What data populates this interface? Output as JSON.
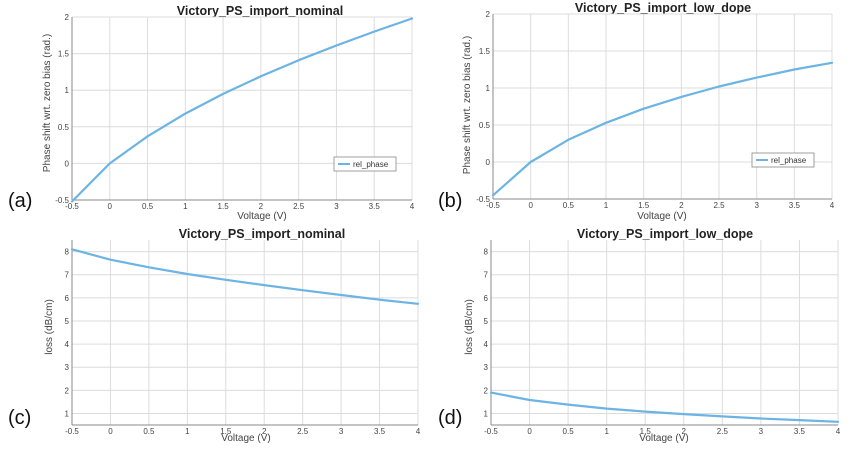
{
  "chart_data": [
    {
      "id": "a",
      "type": "line",
      "panel_label": "(a)",
      "title": "Victory_PS_import_nominal",
      "xlabel": "Voltage (V)",
      "ylabel": "Phase shift wrt. zero bias (rad.)",
      "xlim": [
        -0.5,
        4
      ],
      "ylim": [
        -0.5,
        2
      ],
      "xticks": [
        "-0.5",
        "0",
        "0.5",
        "1",
        "1.5",
        "2",
        "2.5",
        "3",
        "3.5",
        "4"
      ],
      "yticks": [
        "-0.5",
        "0",
        "0.5",
        "1",
        "1.5",
        "2"
      ],
      "grid": true,
      "legend": "right",
      "series": [
        {
          "name": "rel_phase",
          "color": "#6cb4e4",
          "x": [
            -0.5,
            0,
            0.5,
            1,
            1.5,
            2,
            2.5,
            3,
            3.5,
            4
          ],
          "y": [
            -0.52,
            0.0,
            0.37,
            0.68,
            0.95,
            1.19,
            1.41,
            1.61,
            1.8,
            1.98
          ]
        }
      ]
    },
    {
      "id": "b",
      "type": "line",
      "panel_label": "(b)",
      "title": "Victory_PS_import_low_dope",
      "xlabel": "Voltage (V)",
      "ylabel": "Phase shift wrt. zero bias (rad.)",
      "xlim": [
        -0.5,
        4
      ],
      "ylim": [
        -0.5,
        2
      ],
      "xticks": [
        "-0.5",
        "0",
        "0.5",
        "1",
        "1.5",
        "2",
        "2.5",
        "3",
        "3.5",
        "4"
      ],
      "yticks": [
        "-0.5",
        "0",
        "0.5",
        "1",
        "1.5",
        "2"
      ],
      "grid": true,
      "legend": "right",
      "series": [
        {
          "name": "rel_phase",
          "color": "#6cb4e4",
          "x": [
            -0.5,
            0,
            0.5,
            1,
            1.5,
            2,
            2.5,
            3,
            3.5,
            4
          ],
          "y": [
            -0.45,
            0.0,
            0.3,
            0.53,
            0.72,
            0.88,
            1.02,
            1.14,
            1.25,
            1.34
          ]
        }
      ]
    },
    {
      "id": "c",
      "type": "line",
      "panel_label": "(c)",
      "title": "Victory_PS_import_nominal",
      "xlabel": "Voltage (V)",
      "ylabel": "loss (dB/cm)",
      "xlim": [
        -0.5,
        4
      ],
      "ylim": [
        0.5,
        8.5
      ],
      "xticks": [
        "-0.5",
        "0",
        "0.5",
        "1",
        "1.5",
        "2",
        "2.5",
        "3",
        "3.5",
        "4"
      ],
      "yticks": [
        "1",
        "2",
        "3",
        "4",
        "5",
        "6",
        "7",
        "8"
      ],
      "grid": true,
      "series": [
        {
          "color": "#6cb4e4",
          "x": [
            -0.5,
            0,
            0.5,
            1,
            1.5,
            2,
            2.5,
            3,
            3.5,
            4
          ],
          "y": [
            8.1,
            7.65,
            7.32,
            7.03,
            6.78,
            6.55,
            6.33,
            6.12,
            5.92,
            5.74
          ]
        }
      ]
    },
    {
      "id": "d",
      "type": "line",
      "panel_label": "(d)",
      "title": "Victory_PS_import_low_dope",
      "xlabel": "Voltage (V)",
      "ylabel": "loss (dB/cm)",
      "xlim": [
        -0.5,
        4
      ],
      "ylim": [
        0.5,
        8.5
      ],
      "xticks": [
        "-0.5",
        "0",
        "0.5",
        "1",
        "1.5",
        "2",
        "2.5",
        "3",
        "3.5",
        "4"
      ],
      "yticks": [
        "1",
        "2",
        "3",
        "4",
        "5",
        "6",
        "7",
        "8"
      ],
      "grid": true,
      "series": [
        {
          "color": "#6cb4e4",
          "x": [
            -0.5,
            0,
            0.5,
            1,
            1.5,
            2,
            2.5,
            3,
            3.5,
            4
          ],
          "y": [
            1.9,
            1.58,
            1.38,
            1.21,
            1.08,
            0.97,
            0.87,
            0.78,
            0.71,
            0.64
          ]
        }
      ]
    }
  ]
}
